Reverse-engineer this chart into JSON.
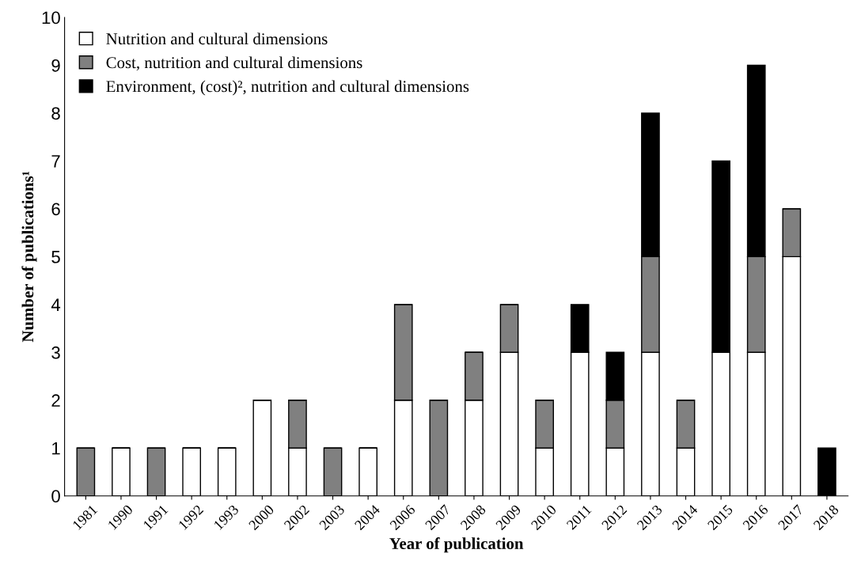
{
  "chart_data": {
    "type": "bar",
    "stacked": true,
    "xlabel": "Year of publication",
    "ylabel": "Number of publications¹",
    "categories": [
      "1981",
      "1990",
      "1991",
      "1992",
      "1993",
      "2000",
      "2002",
      "2003",
      "2004",
      "2006",
      "2007",
      "2008",
      "2009",
      "2010",
      "2011",
      "2012",
      "2013",
      "2014",
      "2015",
      "2016",
      "2017",
      "2018"
    ],
    "series": [
      {
        "name": "Nutrition and cultural dimensions",
        "color": "#ffffff",
        "values": [
          0,
          1,
          0,
          1,
          1,
          2,
          1,
          0,
          1,
          2,
          0,
          2,
          3,
          1,
          3,
          1,
          3,
          1,
          3,
          3,
          5,
          0
        ]
      },
      {
        "name": "Cost, nutrition and cultural dimensions",
        "color": "#808080",
        "values": [
          1,
          0,
          1,
          0,
          0,
          0,
          1,
          1,
          0,
          2,
          2,
          1,
          1,
          1,
          0,
          1,
          2,
          1,
          0,
          2,
          1,
          0
        ]
      },
      {
        "name": "Environment, (cost)², nutrition and cultural dimensions",
        "color": "#000000",
        "values": [
          0,
          0,
          0,
          0,
          0,
          0,
          0,
          0,
          0,
          0,
          0,
          0,
          0,
          0,
          1,
          1,
          3,
          0,
          4,
          4,
          0,
          1
        ]
      }
    ],
    "ylim": [
      0,
      10
    ],
    "yticks": [
      0,
      1,
      2,
      3,
      4,
      5,
      6,
      7,
      8,
      9,
      10
    ],
    "grid": false,
    "legend": "top left"
  }
}
